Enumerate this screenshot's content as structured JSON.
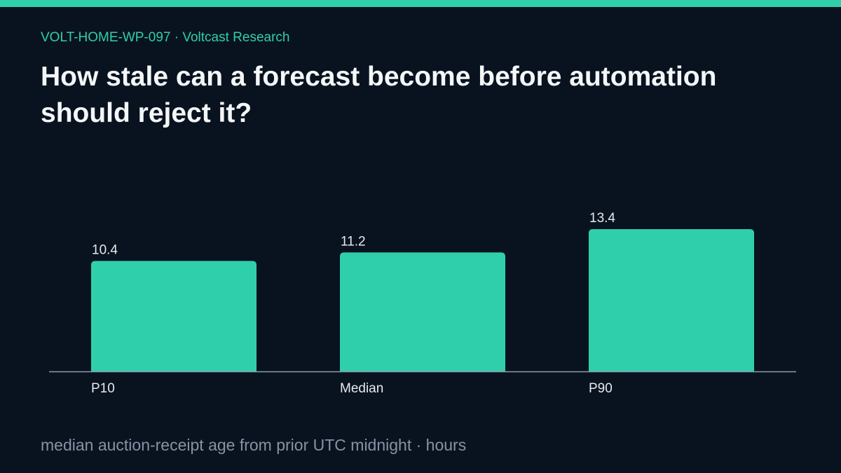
{
  "header": {
    "kicker": "VOLT-HOME-WP-097 · Voltcast Research",
    "title": "How stale can a forecast become before automation should reject it?"
  },
  "footnote": "median auction-receipt age from prior UTC midnight · hours",
  "colors": {
    "accent": "#30cfab",
    "background": "#09131f",
    "title": "#f4f6f8",
    "muted": "#8593a5",
    "axis": "#8d9bb0",
    "label": "#e6e9ee"
  },
  "chart_data": {
    "type": "bar",
    "categories": [
      "P10",
      "Median",
      "P90"
    ],
    "values": [
      10.4,
      11.2,
      13.4
    ],
    "value_labels": [
      "10.4",
      "11.2",
      "13.4"
    ],
    "title": "",
    "xlabel": "",
    "ylabel": "",
    "ylim": [
      0,
      16.5
    ],
    "grid": false,
    "legend": "none"
  }
}
